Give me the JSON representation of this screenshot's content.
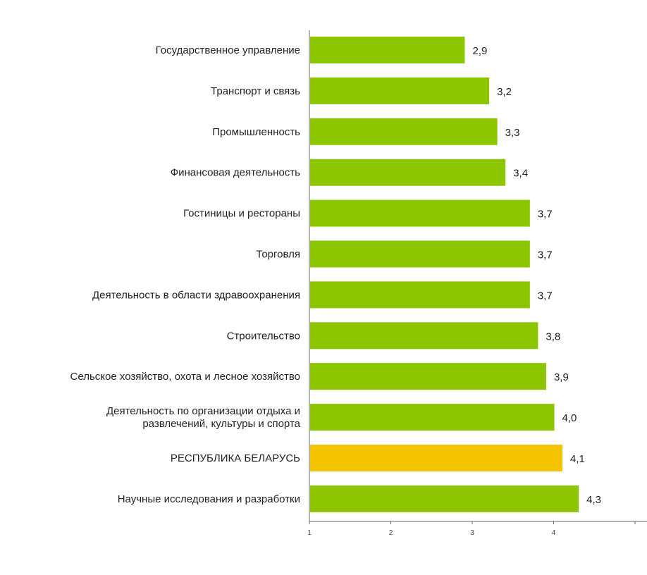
{
  "chart_data": {
    "type": "bar",
    "orientation": "horizontal",
    "title": "",
    "xlabel": "",
    "ylabel": "",
    "xlim": [
      1,
      6
    ],
    "x_ticks": [
      "1",
      "2",
      "3",
      "4",
      "6"
    ],
    "grid": false,
    "categories": [
      "Государственное управление",
      "Транспорт и связь",
      "Промышленность",
      "Финансовая деятельность",
      "Гостиницы и рестораны",
      "Торговля",
      "Деятельность в области здравоохранения",
      "Строительство",
      "Сельское хозяйство, охота и лесное хозяйство",
      "Деятельность по организации отдыха и развлечений, культуры и спорта",
      "РЕСПУБЛИКА БЕЛАРУСЬ",
      "Научные исследования и разработки"
    ],
    "category_lines": [
      [
        "Государственное управление"
      ],
      [
        "Транспорт и связь"
      ],
      [
        "Промышленность"
      ],
      [
        "Финансовая деятельность"
      ],
      [
        "Гостиницы и рестораны"
      ],
      [
        "Торговля"
      ],
      [
        "Деятельность в области здравоохранения"
      ],
      [
        "Строительство"
      ],
      [
        "Сельское хозяйство, охота и лесное хозяйство"
      ],
      [
        "Деятельность по организации отдыха и",
        "развлечений, культуры и спорта"
      ],
      [
        "РЕСПУБЛИКА БЕЛАРУСЬ"
      ],
      [
        "Научные исследования и разработки"
      ]
    ],
    "values": [
      2.9,
      3.2,
      3.3,
      3.4,
      3.7,
      3.7,
      3.7,
      3.8,
      3.9,
      4.0,
      4.1,
      4.3
    ],
    "value_labels": [
      "2,9",
      "3,2",
      "3,3",
      "3,4",
      "3,7",
      "3,7",
      "3,7",
      "3,8",
      "3,9",
      "4,0",
      "4,1",
      "4,3"
    ],
    "colors": {
      "default": "#8cc600",
      "highlight": "#f5c400",
      "axis": "#666666"
    },
    "highlight_index": 10
  }
}
